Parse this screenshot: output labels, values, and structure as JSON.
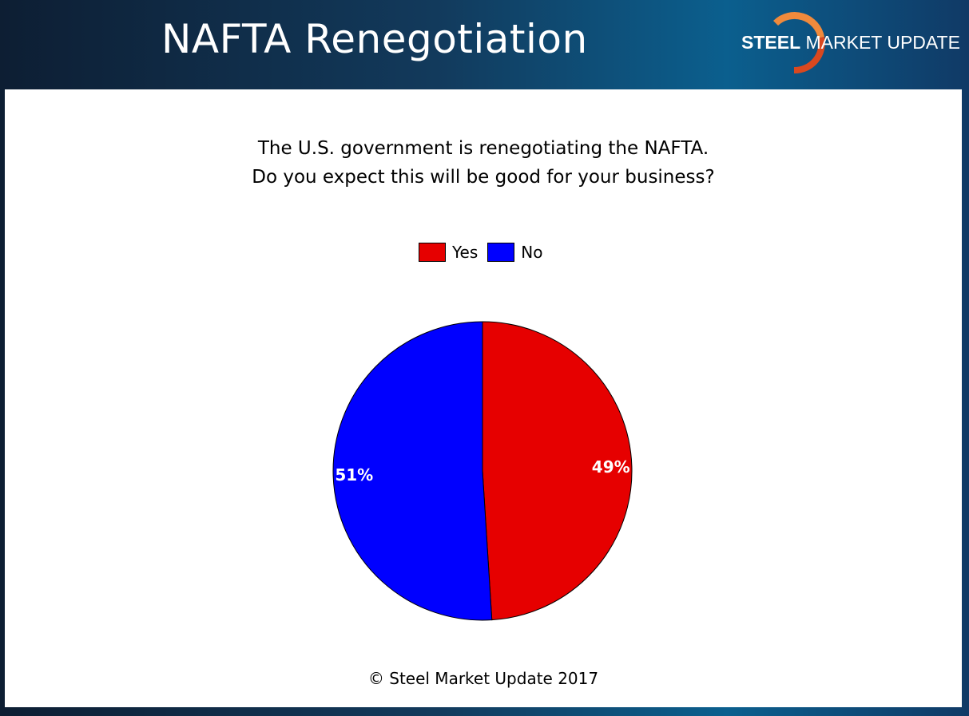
{
  "header": {
    "title": "NAFTA Renegotiation",
    "logo": {
      "bold_text": "STEEL",
      "regular_text": "MARKET UPDATE",
      "swoosh_color": "#e8632a"
    }
  },
  "chart_data": {
    "type": "pie",
    "title_lines": [
      "The U.S. government is renegotiating the NAFTA.",
      "Do you expect this will be good for your business?"
    ],
    "categories": [
      "Yes",
      "No"
    ],
    "values": [
      49,
      51
    ],
    "labels": [
      "49%",
      "51%"
    ],
    "colors": [
      "#e60000",
      "#0000ff"
    ],
    "legend_position": "top"
  },
  "footer": {
    "copyright": "© Steel Market Update 2017"
  }
}
